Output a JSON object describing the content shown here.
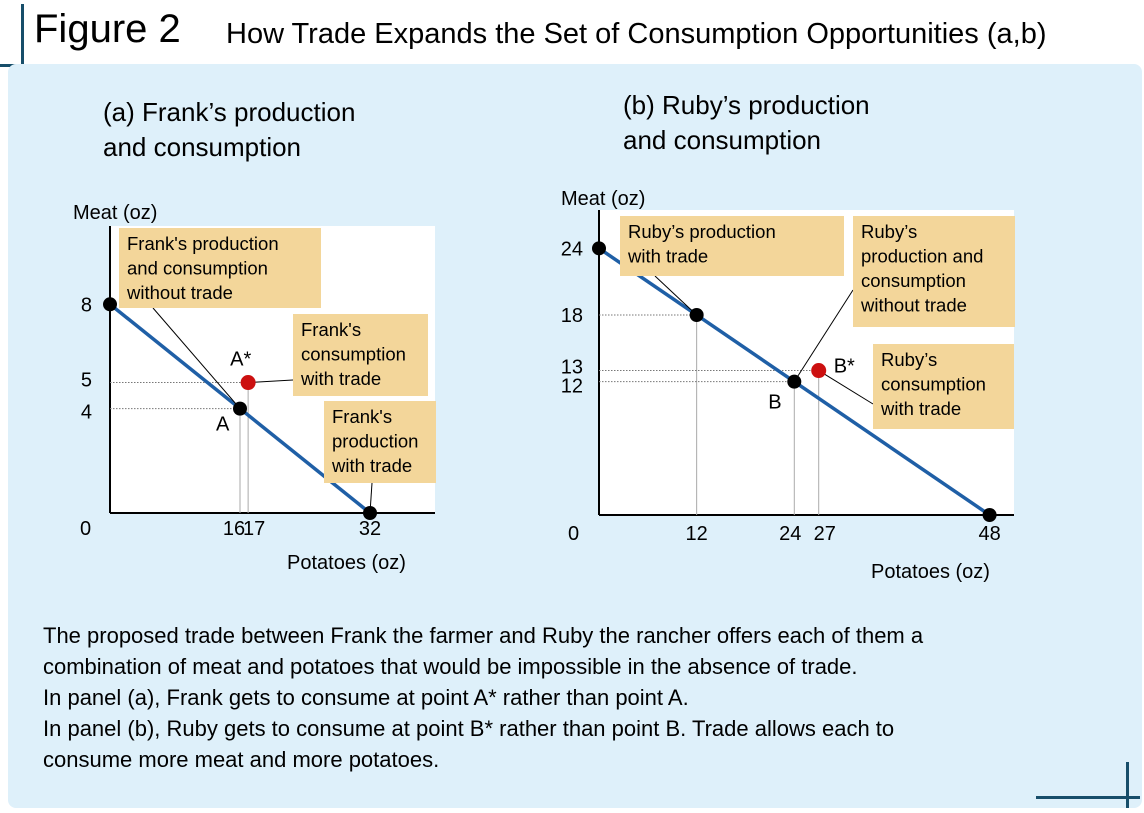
{
  "figure": {
    "number": "Figure 2",
    "title": "How Trade Expands the Set of Consumption Opportunities (a,b)"
  },
  "caption": [
    "The proposed trade between Frank the farmer and Ruby the rancher offers each of them a",
    "combination of meat and potatoes that would be impossible in the absence of trade.",
    "In panel (a), Frank gets to consume at point A* rather than point A.",
    "In panel (b), Ruby gets to consume at point B* rather than point B. Trade allows each to",
    "consume more meat and more potatoes."
  ],
  "colors": {
    "frontier": "#1f5fa6",
    "trade_point": "#cc1010",
    "point": "#000000",
    "callout": "#f3d69a",
    "panel": "#def0fa",
    "rule": "#174e6a"
  },
  "chart_data": [
    {
      "type": "line",
      "panel_title": [
        "(a) Frank’s production",
        "and consumption"
      ],
      "xlabel": "Potatoes (oz)",
      "ylabel": "Meat (oz)",
      "origin_label": "0",
      "xlim": [
        0,
        40
      ],
      "ylim": [
        0,
        11
      ],
      "x_ticks": [
        16,
        17,
        32
      ],
      "y_ticks": [
        8,
        5,
        4
      ],
      "series": [
        {
          "x": [
            0,
            32
          ],
          "y": [
            8,
            0
          ]
        }
      ],
      "points": [
        {
          "label": "",
          "x": 0,
          "y": 8,
          "kind": "endpoint"
        },
        {
          "label": "",
          "x": 32,
          "y": 0,
          "kind": "endpoint"
        },
        {
          "label": "A",
          "x": 16,
          "y": 4,
          "kind": "point"
        },
        {
          "label": "A*",
          "x": 17,
          "y": 5,
          "kind": "trade"
        }
      ],
      "callouts": [
        {
          "lines": [
            "Frank's production",
            "and consumption",
            "without trade"
          ],
          "target": "A"
        },
        {
          "lines": [
            "Frank's",
            "consumption",
            "with trade"
          ],
          "target": "A*"
        },
        {
          "lines": [
            "Frank's",
            "production",
            "with trade"
          ],
          "target": "(32,0)"
        }
      ]
    },
    {
      "type": "line",
      "panel_title": [
        "(b) Ruby’s production",
        "and consumption"
      ],
      "xlabel": "Potatoes (oz)",
      "ylabel": "Meat (oz)",
      "origin_label": "0",
      "xlim": [
        0,
        51
      ],
      "ylim": [
        0,
        27
      ],
      "x_ticks": [
        12,
        24,
        27,
        48
      ],
      "y_ticks": [
        24,
        18,
        13,
        12
      ],
      "series": [
        {
          "x": [
            0,
            48
          ],
          "y": [
            24,
            0
          ]
        }
      ],
      "points": [
        {
          "label": "",
          "x": 0,
          "y": 24,
          "kind": "endpoint"
        },
        {
          "label": "",
          "x": 12,
          "y": 18,
          "kind": "endpoint"
        },
        {
          "label": "",
          "x": 48,
          "y": 0,
          "kind": "endpoint"
        },
        {
          "label": "B",
          "x": 24,
          "y": 12,
          "kind": "point"
        },
        {
          "label": "B*",
          "x": 27,
          "y": 13,
          "kind": "trade"
        }
      ],
      "callouts": [
        {
          "lines": [
            "Ruby’s production",
            "with trade"
          ],
          "target": "(12,18)"
        },
        {
          "lines": [
            "Ruby’s",
            "production and",
            "consumption",
            "without trade"
          ],
          "target": "B"
        },
        {
          "lines": [
            "Ruby’s",
            "consumption",
            "with trade"
          ],
          "target": "B*"
        }
      ]
    }
  ]
}
